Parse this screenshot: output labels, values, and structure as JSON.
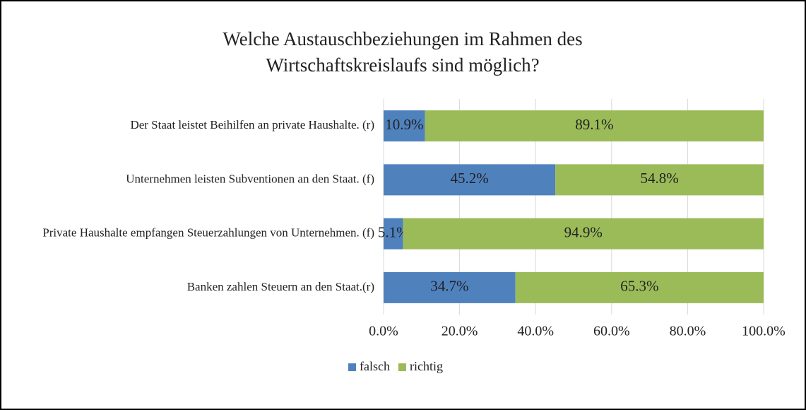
{
  "chart_data": {
    "type": "stacked_barh",
    "title": [
      "Welche Austauschbeziehungen im Rahmen des",
      "Wirtschaftskreislaufs  sind möglich?"
    ],
    "categories": [
      "Der Staat leistet Beihilfen an private Haushalte. (r)",
      "Unternehmen leisten Subventionen an den Staat. (f)",
      "Private Haushalte empfangen Steuerzahlungen von Unternehmen. (f)",
      "Banken zahlen Steuern an den Staat.(r)"
    ],
    "series": [
      {
        "name": "falsch",
        "color": "#4f81bd",
        "values": [
          10.9,
          45.2,
          5.1,
          34.7
        ],
        "value_labels": [
          "10.9%",
          "45.2%",
          "5.1%",
          "34.7%"
        ]
      },
      {
        "name": "richtig",
        "color": "#9bbb59",
        "values": [
          89.1,
          54.8,
          94.9,
          65.3
        ],
        "value_labels": [
          "89.1%",
          "54.8%",
          "94.9%",
          "65.3%"
        ]
      }
    ],
    "xlim": [
      0,
      100
    ],
    "xticks": [
      {
        "value": 0,
        "label": "0.0%"
      },
      {
        "value": 20,
        "label": "20.0%"
      },
      {
        "value": 40,
        "label": "40.0%"
      },
      {
        "value": 60,
        "label": "60.0%"
      },
      {
        "value": 80,
        "label": "80.0%"
      },
      {
        "value": 100,
        "label": "100.0%"
      }
    ],
    "grid": true,
    "legend": "bottom"
  }
}
